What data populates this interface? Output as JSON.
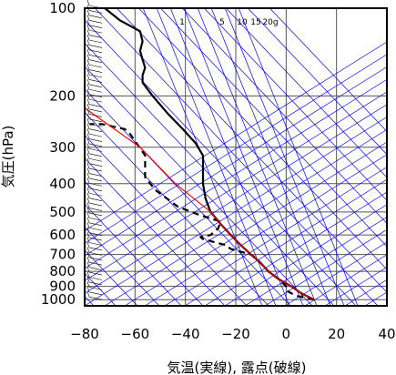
{
  "chart_data": {
    "type": "line",
    "xlabel": "気温(実線), 露点(破線)",
    "ylabel": "気圧(hPa)",
    "xlim": [
      -80,
      40
    ],
    "ylim": [
      1050,
      100
    ],
    "y_scale": "log",
    "x_ticks": [
      "−80",
      "−60",
      "−40",
      "−20",
      "0",
      "20",
      "40"
    ],
    "y_ticks": [
      "100",
      "200",
      "300",
      "400",
      "500",
      "600",
      "700",
      "800",
      "900",
      "1000"
    ],
    "mixing_ratio_labels": [
      "1",
      "5",
      "10",
      "15",
      "20g"
    ],
    "series": [
      {
        "points": [
          [
            11,
            1000
          ],
          [
            6,
            950
          ],
          [
            2,
            900
          ],
          [
            -3,
            850
          ],
          [
            -7,
            800
          ],
          [
            -10,
            750
          ],
          [
            -14,
            700
          ],
          [
            -18,
            650
          ],
          [
            -22,
            600
          ],
          [
            -26,
            550
          ],
          [
            -30,
            500
          ],
          [
            -32,
            450
          ],
          [
            -33,
            400
          ],
          [
            -33,
            350
          ],
          [
            -33,
            320
          ],
          [
            -36,
            290
          ],
          [
            -41,
            260
          ],
          [
            -47,
            230
          ],
          [
            -53,
            200
          ],
          [
            -57,
            180
          ],
          [
            -57,
            170
          ],
          [
            -56,
            160
          ],
          [
            -57,
            150
          ],
          [
            -58,
            140
          ],
          [
            -57,
            130
          ],
          [
            -58,
            120
          ],
          [
            -66,
            110
          ],
          [
            -72,
            100
          ]
        ]
      },
      {
        "points": [
          [
            11,
            1000
          ],
          [
            4,
            970
          ],
          [
            2,
            950
          ],
          [
            0,
            930
          ],
          [
            0,
            900
          ],
          [
            -3,
            850
          ],
          [
            -7,
            800
          ],
          [
            -12,
            720
          ],
          [
            -14,
            700
          ],
          [
            -22,
            670
          ],
          [
            -24,
            650
          ],
          [
            -33,
            620
          ],
          [
            -34,
            610
          ],
          [
            -30,
            600
          ],
          [
            -27,
            570
          ],
          [
            -26,
            540
          ],
          [
            -35,
            510
          ],
          [
            -43,
            480
          ],
          [
            -52,
            420
          ],
          [
            -56,
            380
          ],
          [
            -56,
            320
          ],
          [
            -62,
            270
          ],
          [
            -64,
            260
          ],
          [
            -73,
            250
          ],
          [
            -78,
            250
          ]
        ]
      },
      {
        "points": [
          [
            11,
            1000
          ],
          [
            6,
            950
          ],
          [
            2,
            900
          ],
          [
            -3,
            850
          ],
          [
            -7,
            800
          ],
          [
            -10,
            750
          ],
          [
            -14,
            700
          ],
          [
            -18,
            650
          ],
          [
            -22,
            600
          ],
          [
            -26,
            550
          ],
          [
            -30,
            500
          ],
          [
            -44,
            400
          ],
          [
            -58,
            300
          ],
          [
            -71,
            250
          ],
          [
            -80,
            220
          ]
        ]
      }
    ],
    "colors": {
      "temperature": "#000000",
      "dewpoint": "#000000",
      "parcel": "#ff0000",
      "skew_lines": "#0000ff"
    },
    "wind_barbs": true
  }
}
